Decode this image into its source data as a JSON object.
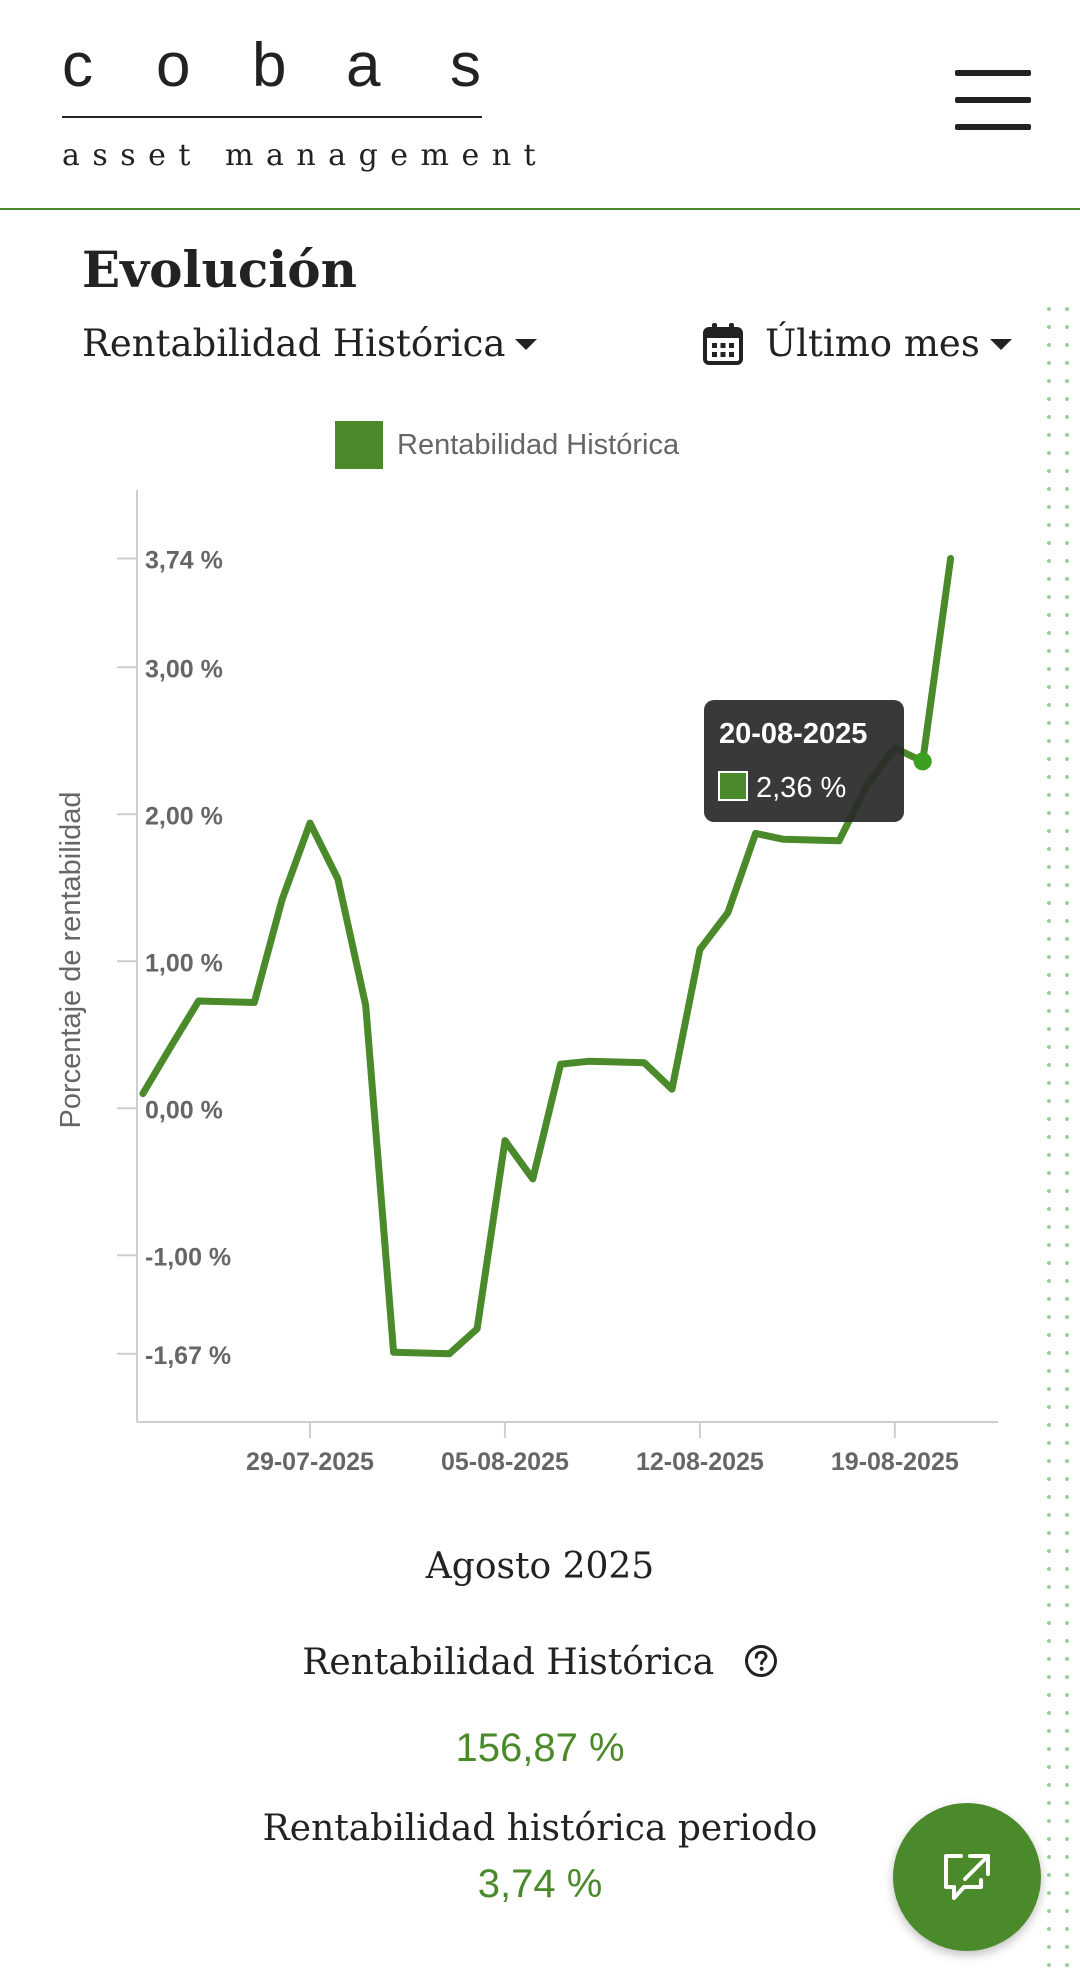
{
  "header": {
    "logo_letters": [
      "c",
      "o",
      "b",
      "a",
      "s"
    ],
    "logo_subtitle": "asset management",
    "menu_icon": "hamburger-menu-icon"
  },
  "evolution": {
    "title": "Evolución",
    "metric_selector": "Rentabilidad Histórica",
    "period_selector": "Último mes",
    "calendar_icon": "calendar-icon"
  },
  "colors": {
    "accent": "#4a8a2a",
    "line": "#4a8a2a",
    "tooltip_bg": "#2a2a2a",
    "muted_text": "#666666"
  },
  "chart_data": {
    "type": "line",
    "legend": "Rentabilidad Histórica",
    "ylabel": "Porcentaje de rentabilidad",
    "xlabel": "",
    "y_ticks": [
      {
        "value": 3.74,
        "label": "3,74 %"
      },
      {
        "value": 3.0,
        "label": "3,00 %"
      },
      {
        "value": 2.0,
        "label": "2,00 %"
      },
      {
        "value": 1.0,
        "label": "1,00 %"
      },
      {
        "value": 0.0,
        "label": "0,00 %"
      },
      {
        "value": -1.0,
        "label": "-1,00 %"
      },
      {
        "value": -1.67,
        "label": "-1,67 %"
      }
    ],
    "x_ticks": [
      "29-07-2025",
      "05-08-2025",
      "12-08-2025",
      "19-08-2025"
    ],
    "x": [
      "23-07-2025",
      "24-07-2025",
      "25-07-2025",
      "27-07-2025",
      "28-07-2025",
      "29-07-2025",
      "30-07-2025",
      "31-07-2025",
      "01-08-2025",
      "03-08-2025",
      "04-08-2025",
      "05-08-2025",
      "06-08-2025",
      "07-08-2025",
      "08-08-2025",
      "10-08-2025",
      "11-08-2025",
      "12-08-2025",
      "13-08-2025",
      "14-08-2025",
      "15-08-2025",
      "17-08-2025",
      "18-08-2025",
      "19-08-2025",
      "20-08-2025",
      "21-08-2025"
    ],
    "values": [
      0.1,
      0.42,
      0.73,
      0.72,
      1.42,
      1.94,
      1.56,
      0.7,
      -1.66,
      -1.67,
      -1.5,
      -0.22,
      -0.48,
      0.3,
      0.32,
      0.31,
      0.13,
      1.08,
      1.33,
      1.87,
      1.83,
      1.82,
      2.2,
      2.45,
      2.36,
      3.74
    ],
    "tooltip": {
      "date": "20-08-2025",
      "value_label": "2,36 %",
      "index": 24
    },
    "grid": false,
    "legend_position": "top-center"
  },
  "summary": {
    "month": "Agosto 2025",
    "historic_label": "Rentabilidad Histórica",
    "help_icon": "help-question-icon",
    "historic_value": "156,87 %",
    "period_label": "Rentabilidad histórica periodo",
    "period_value": "3,74 %"
  },
  "fab": {
    "icon": "share-external-icon"
  }
}
